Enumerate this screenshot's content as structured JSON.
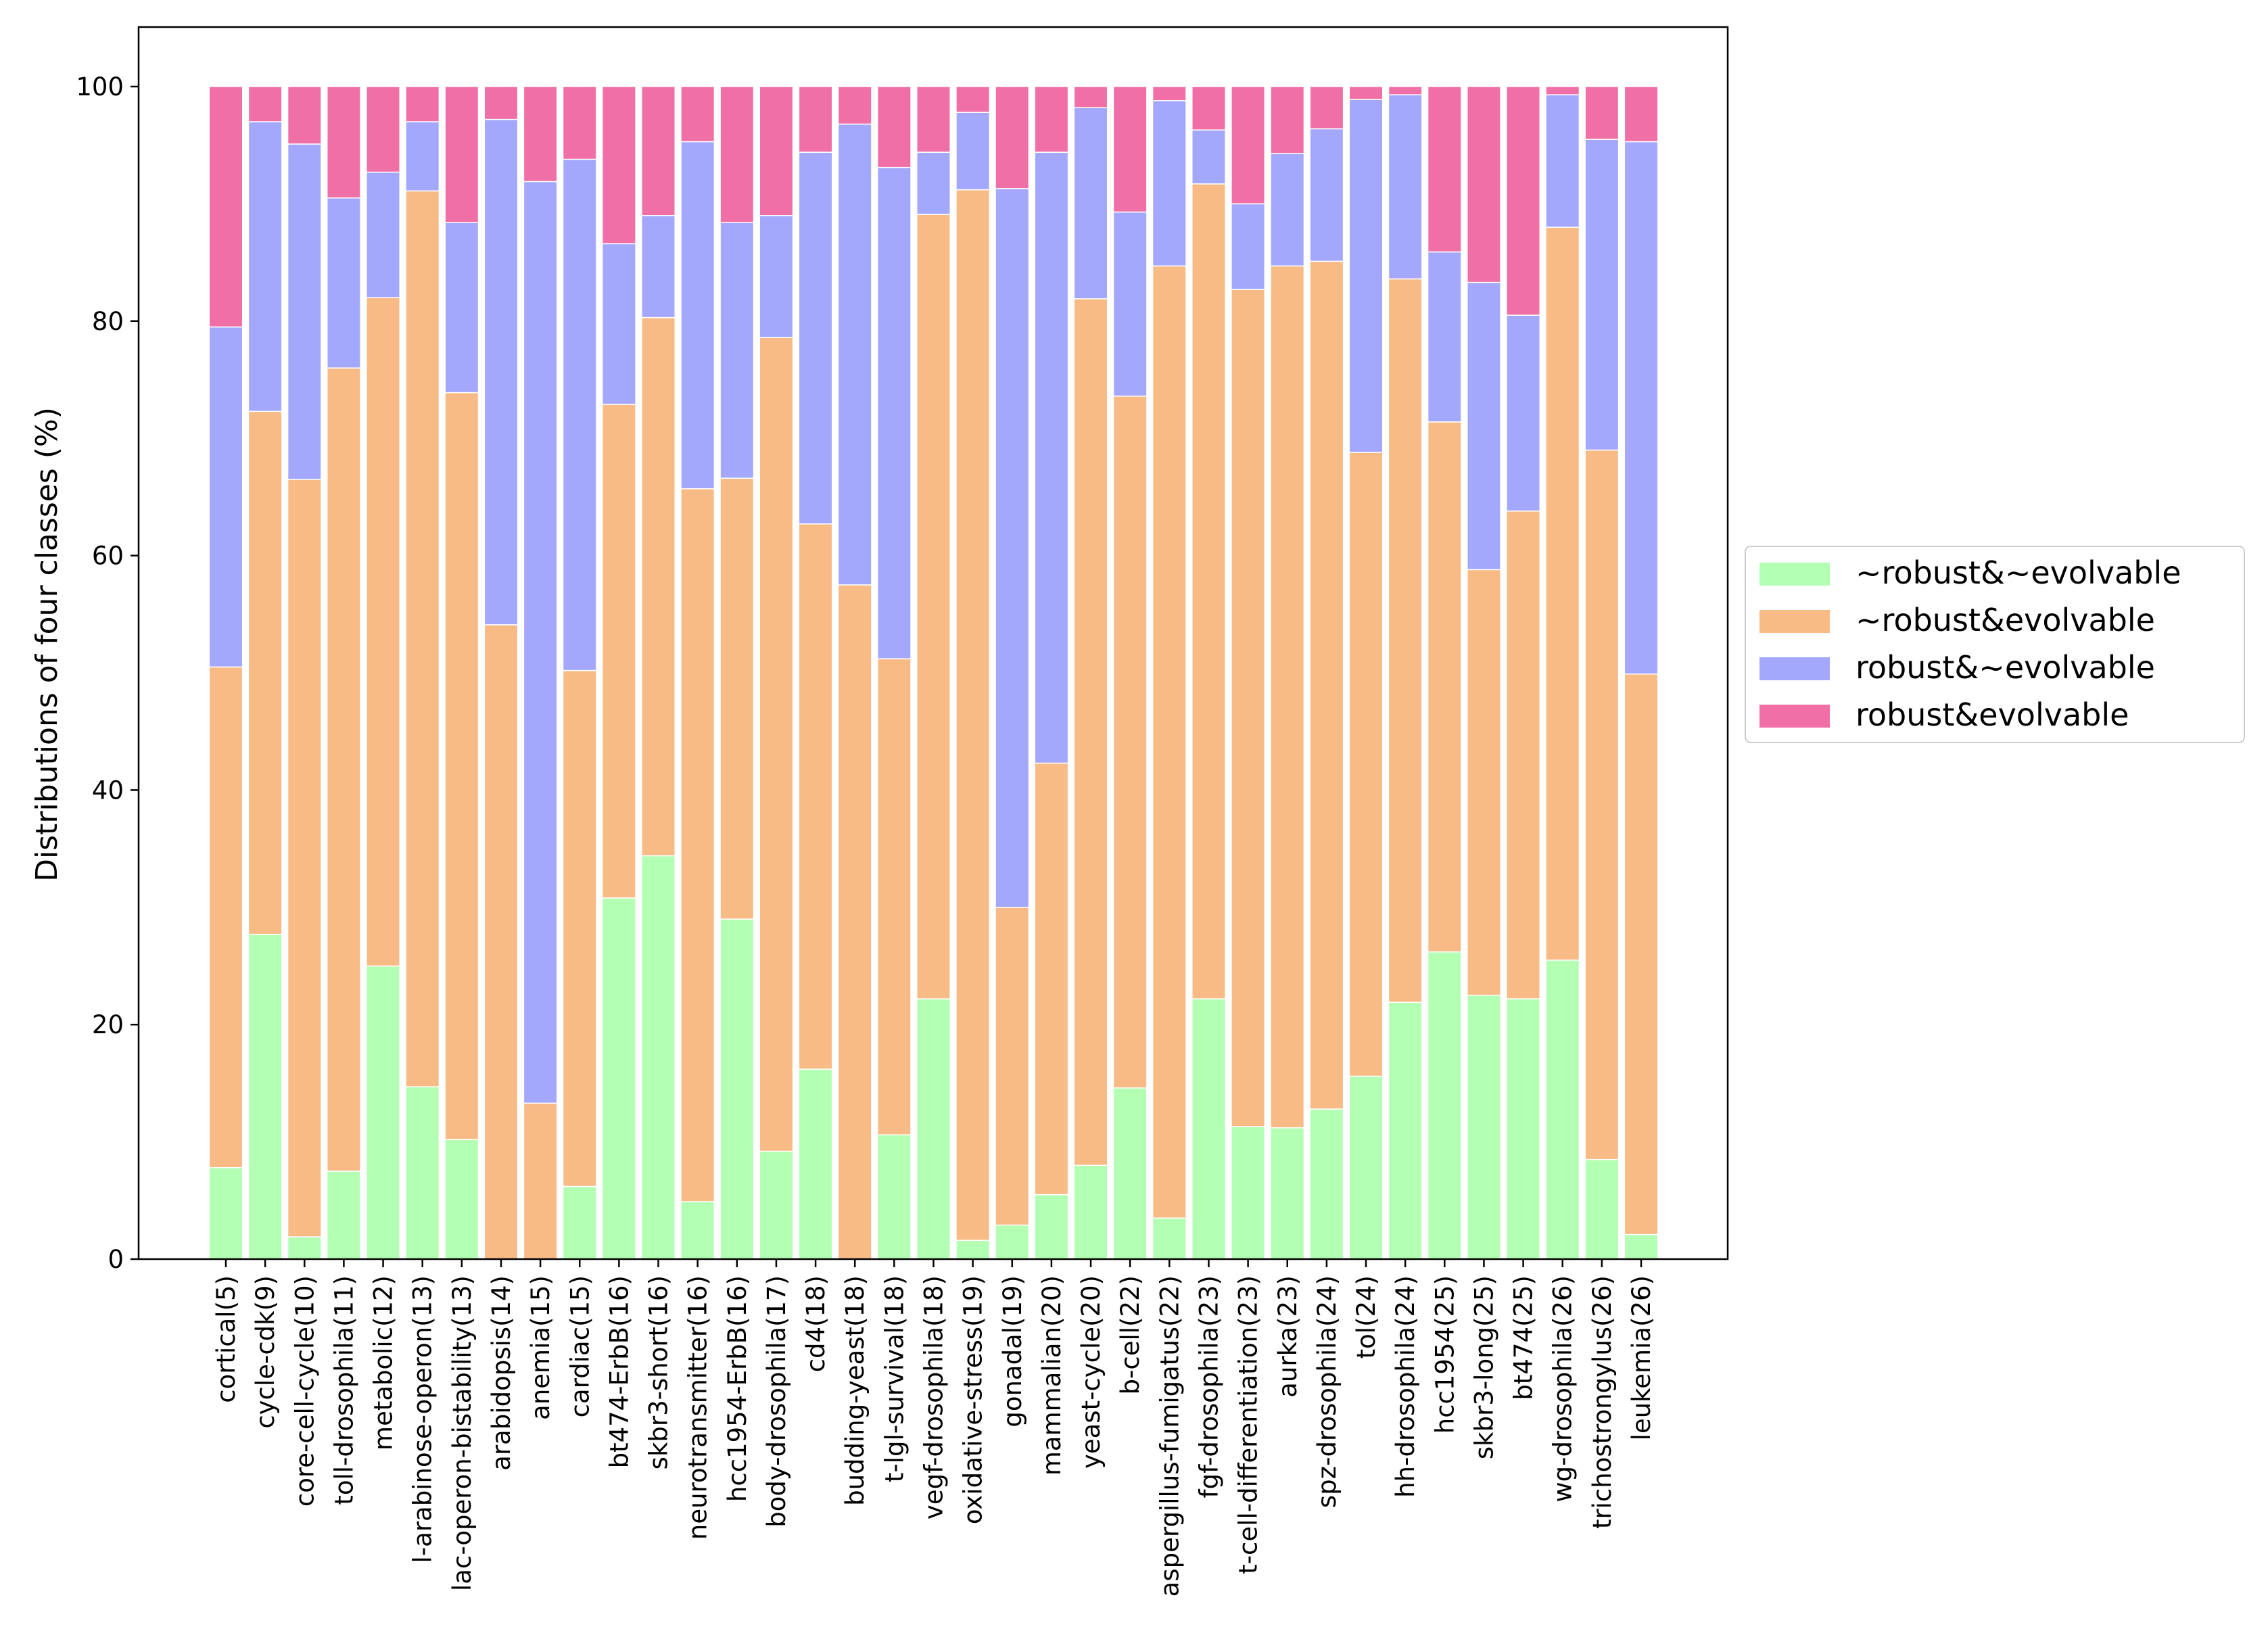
{
  "chart_data": {
    "type": "bar",
    "stacked": true,
    "title": "",
    "xlabel": "",
    "ylabel": "Distributions of four classes (%)",
    "ylim": [
      0,
      100
    ],
    "yticks": [
      "0",
      "20",
      "40",
      "60",
      "80",
      "100"
    ],
    "grid": false,
    "legend_position": "right",
    "categories": [
      "cortical(5)",
      "cycle-cdk(9)",
      "core-cell-cycle(10)",
      "toll-drosophila(11)",
      "metabolic(12)",
      "l-arabinose-operon(13)",
      "lac-operon-bistability(13)",
      "arabidopsis(14)",
      "anemia(15)",
      "cardiac(15)",
      "bt474-ErbB(16)",
      "skbr3-short(16)",
      "neurotransmitter(16)",
      "hcc1954-ErbB(16)",
      "body-drosophila(17)",
      "cd4(18)",
      "budding-yeast(18)",
      "t-lgl-survival(18)",
      "vegf-drosophila(18)",
      "oxidative-stress(19)",
      "gonadal(19)",
      "mammalian(20)",
      "yeast-cycle(20)",
      "b-cell(22)",
      "aspergillus-fumigatus(22)",
      "fgf-drosophila(23)",
      "t-cell-differentiation(23)",
      "aurka(23)",
      "spz-drosophila(24)",
      "tol(24)",
      "hh-drosophila(24)",
      "hcc1954(25)",
      "skbr3-long(25)",
      "bt474(25)",
      "wg-drosophila(26)",
      "trichostrongylus(26)",
      "leukemia(26)"
    ],
    "series": [
      {
        "name": "~robust&~evolvable",
        "color": "#b3ffb3",
        "values": [
          7.8,
          27.7,
          1.9,
          7.5,
          25.0,
          14.7,
          10.2,
          0,
          0,
          6.2,
          30.8,
          34.4,
          4.9,
          29.0,
          9.2,
          16.2,
          0,
          10.6,
          22.2,
          1.6,
          2.9,
          5.5,
          8.0,
          14.6,
          3.5,
          22.2,
          11.3,
          11.2,
          12.8,
          15.6,
          21.9,
          26.2,
          22.5,
          22.2,
          25.5,
          8.5,
          2.1
        ]
      },
      {
        "name": "~robust&evolvable",
        "color": "#f8bb86",
        "values": [
          42.7,
          44.6,
          64.6,
          68.5,
          57.0,
          76.4,
          63.7,
          54.1,
          13.3,
          44.0,
          42.1,
          45.9,
          60.8,
          37.6,
          69.4,
          46.5,
          57.5,
          40.6,
          66.9,
          89.6,
          27.1,
          36.8,
          73.9,
          59.0,
          81.2,
          69.5,
          71.4,
          73.5,
          72.3,
          53.2,
          61.7,
          45.2,
          36.3,
          41.6,
          62.5,
          60.5,
          47.8
        ]
      },
      {
        "name": "robust&~evolvable",
        "color": "#a4a8fc",
        "values": [
          29.0,
          24.7,
          28.6,
          14.5,
          10.7,
          5.9,
          14.5,
          43.1,
          78.6,
          43.6,
          13.7,
          8.7,
          29.6,
          21.8,
          10.4,
          31.7,
          39.3,
          41.9,
          5.3,
          6.6,
          61.3,
          52.1,
          16.3,
          15.7,
          14.1,
          4.6,
          7.3,
          9.6,
          11.3,
          30.1,
          15.7,
          14.5,
          24.5,
          16.7,
          11.3,
          26.5,
          45.4
        ]
      },
      {
        "name": "robust&evolvable",
        "color": "#f06fa6",
        "values": [
          20.5,
          3.0,
          4.9,
          9.5,
          7.3,
          3.0,
          11.6,
          2.8,
          8.1,
          6.2,
          13.4,
          11.0,
          4.7,
          11.6,
          11.0,
          5.6,
          3.2,
          6.9,
          5.6,
          2.2,
          8.7,
          5.6,
          1.8,
          10.7,
          1.2,
          3.7,
          10.0,
          5.7,
          3.6,
          1.1,
          0.7,
          14.1,
          16.7,
          19.5,
          0.7,
          4.5,
          4.7
        ]
      }
    ]
  }
}
